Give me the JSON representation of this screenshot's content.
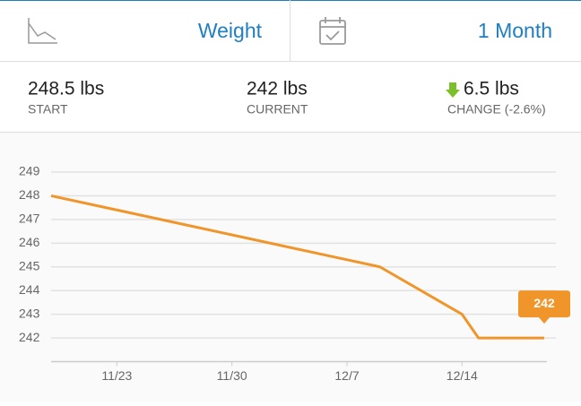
{
  "header": {
    "metric": "Weight",
    "period": "1 Month"
  },
  "stats": [
    {
      "value": "248.5 lbs",
      "label": "START"
    },
    {
      "value": "242 lbs",
      "label": "CURRENT"
    },
    {
      "value": "6.5 lbs",
      "label": "CHANGE (-2.6%)"
    }
  ],
  "chart_data": {
    "type": "line",
    "x": [
      "11/19",
      "12/9",
      "12/14",
      "12/15",
      "12/19"
    ],
    "series": [
      {
        "name": "Weight",
        "color": "#f0952a",
        "values": [
          248,
          245,
          243,
          242,
          242
        ]
      }
    ],
    "xlim": [
      "11/19",
      "12/19"
    ],
    "xticks": [
      "11/23",
      "11/30",
      "12/7",
      "12/14"
    ],
    "ylim": [
      241,
      249
    ],
    "yticks": [
      242,
      243,
      244,
      245,
      246,
      247,
      248,
      249
    ],
    "grid": true
  }
}
